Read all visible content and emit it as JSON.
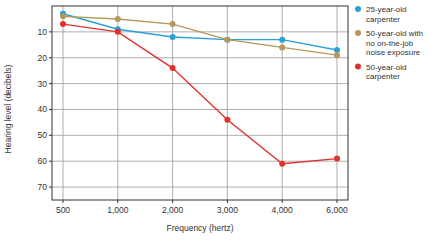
{
  "chart_data": {
    "type": "line",
    "x_label": "Frequency (hertz)",
    "y_label": "Hearing level (decibels)",
    "categories": [
      "500",
      "1,000",
      "2,000",
      "3,000",
      "4,000",
      "6,000"
    ],
    "series": [
      {
        "name": "25-year-old carpenter",
        "color": "#2b9fd8",
        "marker": "circle",
        "values": [
          3,
          9,
          12,
          13,
          13,
          17
        ]
      },
      {
        "name": "50-year-old with no on-the-job noise exposure",
        "color": "#b8975a",
        "marker": "circle",
        "values": [
          4,
          5,
          7,
          13,
          16,
          19
        ]
      },
      {
        "name": "50-year-old carpenter",
        "color": "#e0312f",
        "marker": "circle",
        "values": [
          7,
          10,
          24,
          44,
          61,
          59
        ]
      }
    ],
    "ylim": [
      75,
      0
    ],
    "yticks": [
      10,
      20,
      30,
      40,
      50,
      60,
      70
    ],
    "grid": true,
    "legend": "right"
  }
}
